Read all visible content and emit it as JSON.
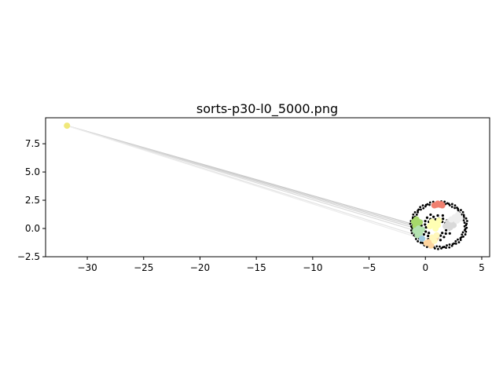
{
  "chart_data": {
    "type": "scatter",
    "title": "sorts-p30-l0_5000.png",
    "xlabel": "",
    "ylabel": "",
    "xlim": [
      -33.7,
      5.7
    ],
    "ylim": [
      -2.5,
      9.8
    ],
    "xticks": [
      -30,
      -25,
      -20,
      -15,
      -10,
      -5,
      0,
      5
    ],
    "xtick_labels": [
      "−30",
      "−25",
      "−20",
      "−15",
      "−10",
      "−5",
      "0",
      "5"
    ],
    "yticks": [
      -2.5,
      0.0,
      2.5,
      5.0,
      7.5
    ],
    "ytick_labels": [
      "−2.5",
      "0.0",
      "2.5",
      "5.0",
      "7.5"
    ],
    "grid": false,
    "legend": "none",
    "ring": {
      "center": [
        1.2,
        0.3
      ],
      "rx": 2.4,
      "ry": 2.0,
      "color": "#000000"
    },
    "links": [
      {
        "from": [
          -31.8,
          9.1
        ],
        "to": [
          -1.0,
          0.35
        ],
        "color": "#c8c8c8"
      },
      {
        "from": [
          -31.8,
          9.1
        ],
        "to": [
          -0.8,
          0.15
        ],
        "color": "#d0d0d0"
      },
      {
        "from": [
          -31.8,
          9.1
        ],
        "to": [
          -0.5,
          -0.1
        ],
        "color": "#d6d6d6"
      },
      {
        "from": [
          -31.8,
          9.1
        ],
        "to": [
          -0.2,
          -0.4
        ],
        "color": "#dcdcdc"
      },
      {
        "from": [
          -31.8,
          9.1
        ],
        "to": [
          0.2,
          -0.9
        ],
        "color": "#e4e4e4"
      },
      {
        "from": [
          -31.8,
          9.1
        ],
        "to": [
          0.6,
          -1.2
        ],
        "color": "#ececec"
      }
    ],
    "clusters": [
      {
        "color": "#f0e87a",
        "x": [
          -31.8
        ],
        "y": [
          9.1
        ]
      },
      {
        "color": "#f08070",
        "x": [
          0.8,
          1.0,
          1.1,
          1.3,
          1.4,
          1.5
        ],
        "y": [
          2.05,
          2.1,
          2.2,
          2.1,
          2.15,
          2.05
        ]
      },
      {
        "color": "#a6d96a",
        "x": [
          -1.0,
          -0.8,
          -0.7,
          -0.9,
          -0.5
        ],
        "y": [
          0.6,
          0.8,
          0.4,
          0.2,
          0.55
        ]
      },
      {
        "color": "#b3e2b0",
        "x": [
          -0.9,
          -0.6,
          -0.5,
          -0.3,
          -0.7
        ],
        "y": [
          -0.2,
          0.0,
          -0.4,
          -0.1,
          -0.6
        ]
      },
      {
        "color": "#ffffb3",
        "x": [
          0.4,
          0.6,
          0.8,
          0.9,
          1.1,
          1.2
        ],
        "y": [
          0.2,
          0.6,
          0.4,
          0.0,
          0.3,
          0.7
        ]
      },
      {
        "color": "#fdd49e",
        "x": [
          0.1,
          0.3,
          0.5,
          0.7,
          0.9
        ],
        "y": [
          -1.3,
          -1.2,
          -1.5,
          -1.1,
          -0.9
        ]
      },
      {
        "color": "#fff7bc",
        "x": [
          0.6,
          0.8,
          1.0
        ],
        "y": [
          -0.8,
          -1.1,
          -0.6
        ]
      },
      {
        "color": "#d9d9d9",
        "x": [
          1.8,
          2.0,
          2.2,
          2.3,
          2.5,
          2.1
        ],
        "y": [
          0.2,
          0.4,
          0.1,
          0.5,
          0.3,
          0.6
        ]
      },
      {
        "color": "#eeeeee",
        "x": [
          2.3,
          2.6,
          2.8,
          2.9,
          3.1
        ],
        "y": [
          0.8,
          1.0,
          0.7,
          1.2,
          0.9
        ]
      },
      {
        "color": "#9ecae1",
        "x": [
          -0.3
        ],
        "y": [
          -0.9
        ]
      }
    ]
  }
}
